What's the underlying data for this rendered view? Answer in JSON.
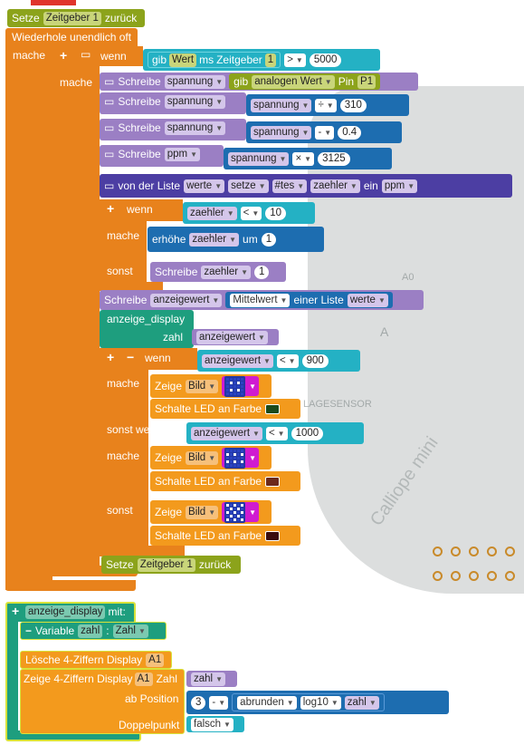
{
  "stack1": {
    "reset_top": {
      "label": "Setze",
      "timer": "Zeitgeber 1",
      "suffix": "zurück"
    },
    "forever": "Wiederhole unendlich oft",
    "mache": "mache",
    "if1": {
      "wenn": "wenn",
      "read": "gib",
      "value": "Wert",
      "unit": "ms",
      "timer": "Zeitgeber",
      "timer_num": "1",
      "op": ">",
      "num": "5000"
    },
    "mache2": "mache",
    "write1": {
      "label": "Schreibe",
      "var": "spannung",
      "read": "gib",
      "read2": "analogen Wert",
      "pin_label": "Pin",
      "pin": "P1"
    },
    "write2": {
      "label": "Schreibe",
      "var": "spannung",
      "arg": "spannung",
      "op": "÷",
      "num": "310"
    },
    "write3": {
      "label": "Schreibe",
      "var": "spannung",
      "arg": "spannung",
      "op": "-",
      "num": "0.4"
    },
    "write4": {
      "label": "Schreibe",
      "var": "ppm",
      "arg": "spannung",
      "op": "×",
      "num": "3125"
    },
    "list": {
      "label": "von der Liste",
      "list": "werte",
      "action": "setze",
      "pos": "#tes",
      "index": "zaehler",
      "ein": "ein",
      "value": "ppm"
    },
    "if2": {
      "wenn": "wenn",
      "var": "zaehler",
      "op": "<",
      "num": "10"
    },
    "mache3": "mache",
    "inc": {
      "label": "erhöhe",
      "var": "zaehler",
      "um": "um",
      "num": "1"
    },
    "sonst": "sonst",
    "write5": {
      "label": "Schreibe",
      "var": "zaehler",
      "num": "1"
    },
    "avg": {
      "label": "Schreibe",
      "var": "anzeigewert",
      "func": "Mittelwert",
      "of": "einer Liste",
      "list": "werte"
    },
    "call": {
      "label": "anzeige_display",
      "param": "zahl",
      "arg": "anzeigewert"
    },
    "if3": {
      "wenn": "wenn",
      "var": "anzeigewert",
      "op": "<",
      "num": "900"
    },
    "mache4": "mache",
    "show1": {
      "label": "Zeige",
      "what": "Bild"
    },
    "led1": {
      "label": "Schalte LED an Farbe",
      "color": "#1b4a1b"
    },
    "elif": {
      "label": "sonst wenn",
      "var": "anzeigewert",
      "op": "<",
      "num": "1000"
    },
    "mache5": "mache",
    "show2": {
      "label": "Zeige",
      "what": "Bild"
    },
    "led2": {
      "label": "Schalte LED an Farbe",
      "color": "#6b2a1b"
    },
    "sonst2": "sonst",
    "show3": {
      "label": "Zeige",
      "what": "Bild"
    },
    "led3": {
      "label": "Schalte LED an Farbe",
      "color": "#3a0d0d"
    },
    "reset_bottom": {
      "label": "Setze",
      "timer": "Zeitgeber 1",
      "suffix": "zurück"
    }
  },
  "stack2": {
    "func": {
      "name": "anzeige_display",
      "mit": "mit:"
    },
    "variable": {
      "label": "Variable",
      "name": "zahl",
      "type": "Zahl"
    },
    "clear": {
      "label": "Lösche  4-Ziffern Display",
      "disp": "A1"
    },
    "show": {
      "label": "Zeige 4-Ziffern Display",
      "disp": "A1",
      "zahl": "Zahl",
      "arg": "zahl"
    },
    "pos": {
      "label": "ab Position",
      "num": "3",
      "op": "-",
      "func": "abrunden",
      "log": "log10",
      "arg": "zahl"
    },
    "colon": {
      "label": "Doppelpunkt",
      "value": "falsch"
    }
  },
  "board": {
    "lagesensor": "LAGESENSOR",
    "a0": "A0",
    "a": "A",
    "brand": "Calliope mini"
  }
}
